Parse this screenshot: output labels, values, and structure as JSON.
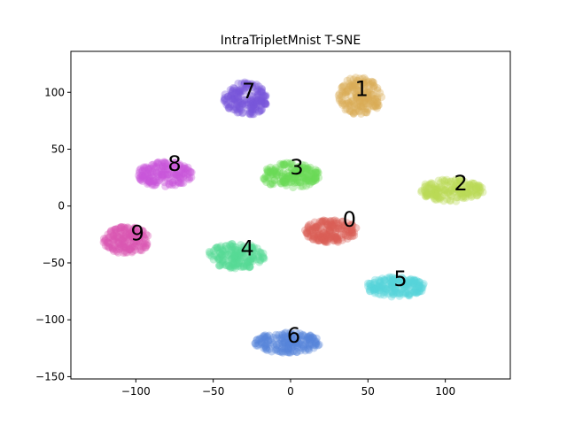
{
  "chart_data": {
    "type": "scatter",
    "title": "IntraTripletMnist T-SNE",
    "xlabel": "",
    "ylabel": "",
    "xlim": [
      -142,
      142
    ],
    "ylim": [
      -152,
      136
    ],
    "xticks": [
      -100,
      -50,
      0,
      50,
      100
    ],
    "yticks": [
      -150,
      -100,
      -50,
      0,
      50,
      100
    ],
    "grid": false,
    "legend": "none",
    "clusters": [
      {
        "label": "0",
        "color": "#db5f57",
        "center": [
          26,
          -22
        ],
        "spread": [
          17,
          10
        ],
        "label_pos": [
          38,
          -12
        ]
      },
      {
        "label": "1",
        "color": "#dbad57",
        "center": [
          45,
          97
        ],
        "spread": [
          14,
          17
        ],
        "label_pos": [
          46,
          103
        ]
      },
      {
        "label": "2",
        "color": "#b9db57",
        "center": [
          104,
          14
        ],
        "spread": [
          21,
          10
        ],
        "label_pos": [
          110,
          20
        ]
      },
      {
        "label": "3",
        "color": "#69db57",
        "center": [
          0,
          27
        ],
        "spread": [
          19,
          11
        ],
        "label_pos": [
          4,
          34
        ]
      },
      {
        "label": "4",
        "color": "#57db94",
        "center": [
          -35,
          -44
        ],
        "spread": [
          19,
          11
        ],
        "label_pos": [
          -28,
          -37
        ]
      },
      {
        "label": "5",
        "color": "#57d3db",
        "center": [
          68,
          -71
        ],
        "spread": [
          19,
          9
        ],
        "label_pos": [
          71,
          -64
        ]
      },
      {
        "label": "6",
        "color": "#5784db",
        "center": [
          -2,
          -120
        ],
        "spread": [
          21,
          9
        ],
        "label_pos": [
          2,
          -114
        ]
      },
      {
        "label": "7",
        "color": "#7957db",
        "center": [
          -29,
          94
        ],
        "spread": [
          14,
          15
        ],
        "label_pos": [
          -27,
          101
        ]
      },
      {
        "label": "8",
        "color": "#c957db",
        "center": [
          -81,
          28
        ],
        "spread": [
          18,
          11
        ],
        "label_pos": [
          -75,
          37
        ]
      },
      {
        "label": "9",
        "color": "#db57b2",
        "center": [
          -106,
          -30
        ],
        "spread": [
          15,
          12
        ],
        "label_pos": [
          -99,
          -24
        ]
      }
    ]
  }
}
